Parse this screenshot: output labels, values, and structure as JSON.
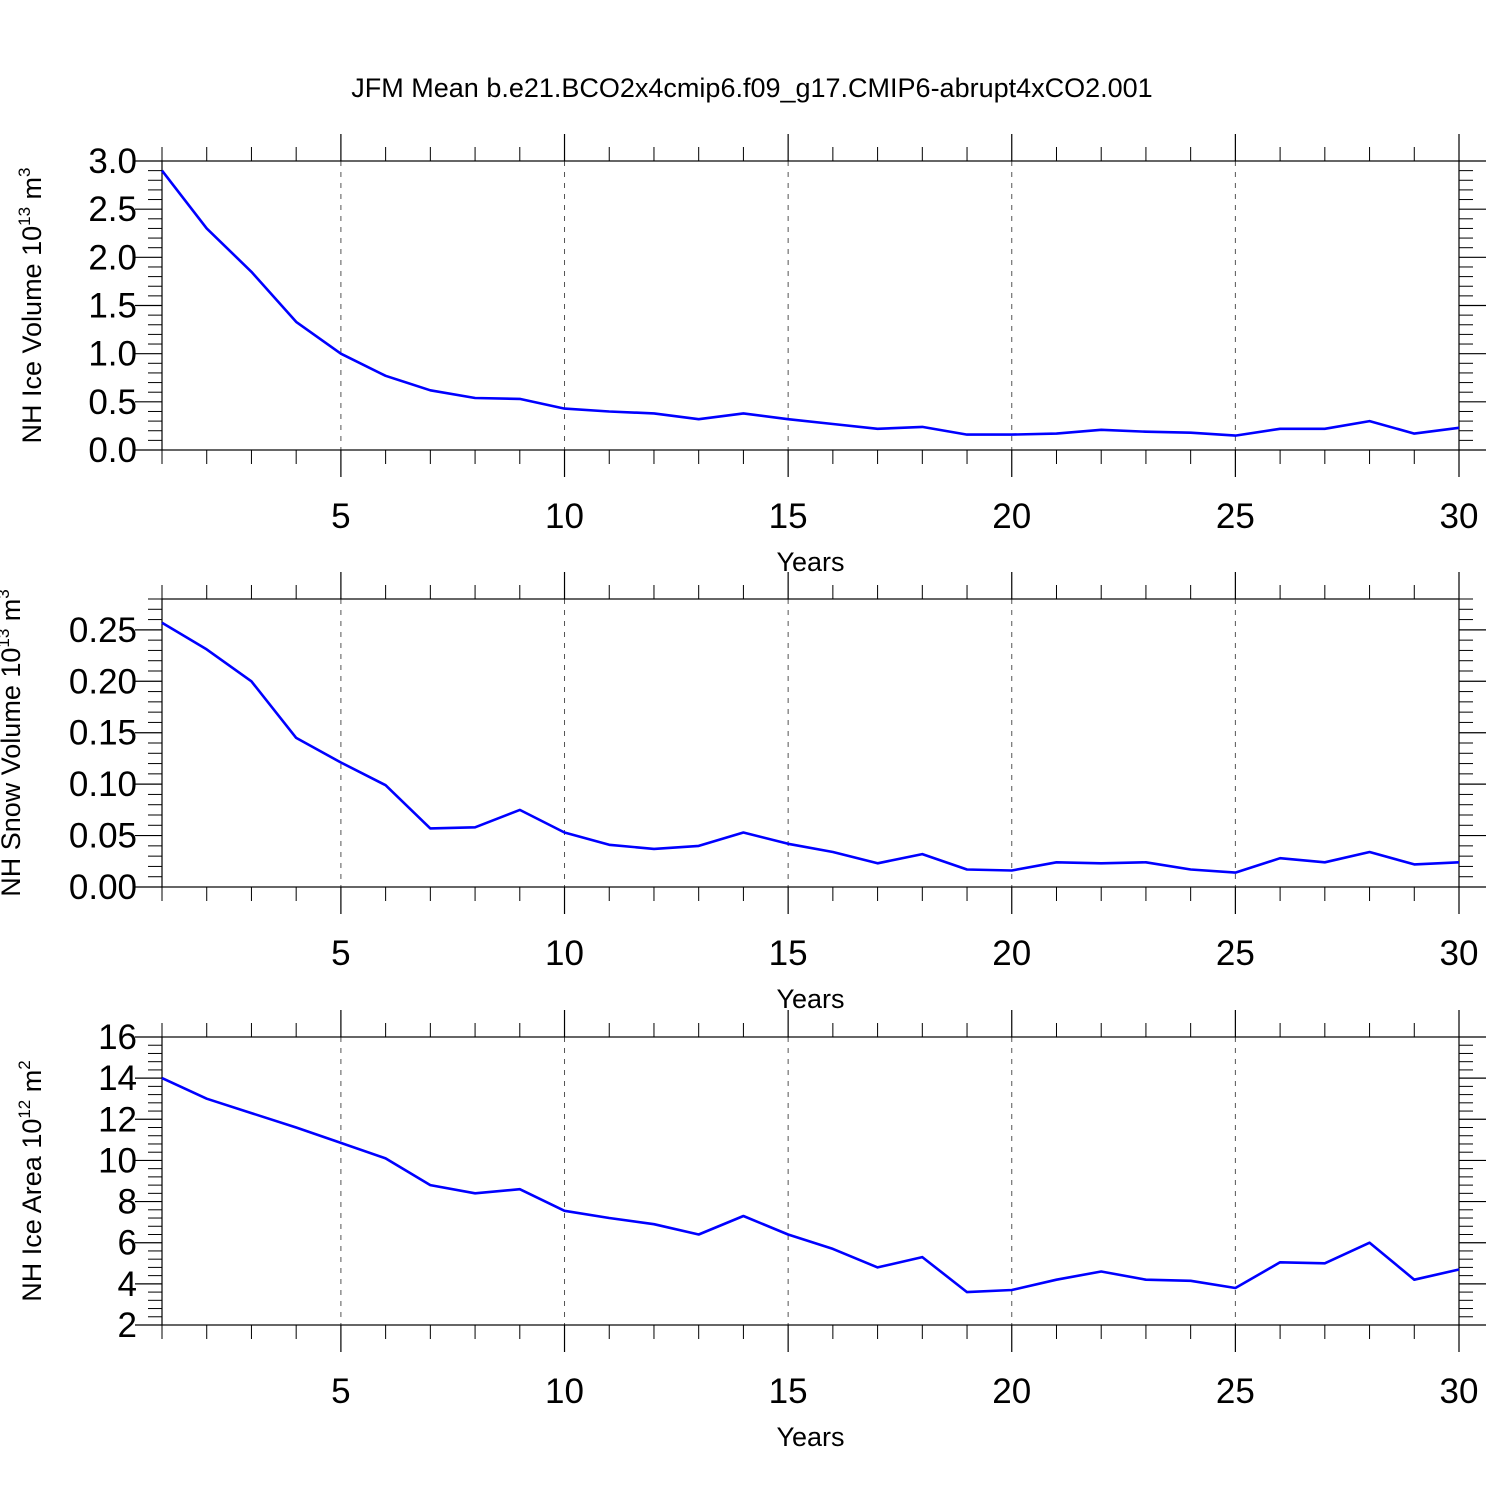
{
  "title": "JFM Mean b.e21.BCO2x4cmip6.f09_g17.CMIP6-abrupt4xCO2.001",
  "chart_data": [
    {
      "type": "line",
      "ylabel": "NH Ice Volume 10",
      "ylabel_exp": "13",
      "ylabel_unit": "m",
      "ylabel_unit_exp": "3",
      "xlabel": "Years",
      "xlim": [
        1,
        30
      ],
      "ylim": [
        0,
        3.0
      ],
      "yticks": [
        0,
        0.5,
        1.0,
        1.5,
        2.0,
        2.5,
        3.0
      ],
      "ytick_labels": [
        "0.0",
        "0.5",
        "1.0",
        "1.5",
        "2.0",
        "2.5",
        "3.0"
      ],
      "xticks": [
        5,
        10,
        15,
        20,
        25,
        30
      ],
      "xtick_labels": [
        "5",
        "10",
        "15",
        "20",
        "25",
        "30"
      ],
      "grid": "vertical dashed",
      "line_color": "#0000ff",
      "x": [
        1,
        2,
        3,
        4,
        5,
        6,
        7,
        8,
        9,
        10,
        11,
        12,
        13,
        14,
        15,
        16,
        17,
        18,
        19,
        20,
        21,
        22,
        23,
        24,
        25,
        26,
        27,
        28,
        29,
        30
      ],
      "y": [
        2.9,
        2.3,
        1.85,
        1.33,
        1.0,
        0.77,
        0.62,
        0.54,
        0.53,
        0.43,
        0.4,
        0.38,
        0.32,
        0.38,
        0.32,
        0.27,
        0.22,
        0.24,
        0.16,
        0.16,
        0.17,
        0.21,
        0.19,
        0.18,
        0.15,
        0.22,
        0.22,
        0.3,
        0.17,
        0.23
      ]
    },
    {
      "type": "line",
      "ylabel": "NH Snow Volume 10",
      "ylabel_exp": "13",
      "ylabel_unit": "m",
      "ylabel_unit_exp": "3",
      "xlabel": "Years",
      "xlim": [
        1,
        30
      ],
      "ylim": [
        0,
        0.28
      ],
      "yticks": [
        0,
        0.05,
        0.1,
        0.15,
        0.2,
        0.25
      ],
      "ytick_labels": [
        "0.00",
        "0.05",
        "0.10",
        "0.15",
        "0.20",
        "0.25"
      ],
      "xticks": [
        5,
        10,
        15,
        20,
        25,
        30
      ],
      "xtick_labels": [
        "5",
        "10",
        "15",
        "20",
        "25",
        "30"
      ],
      "grid": "vertical dashed",
      "line_color": "#0000ff",
      "x": [
        1,
        2,
        3,
        4,
        5,
        6,
        7,
        8,
        9,
        10,
        11,
        12,
        13,
        14,
        15,
        16,
        17,
        18,
        19,
        20,
        21,
        22,
        23,
        24,
        25,
        26,
        27,
        28,
        29,
        30
      ],
      "y": [
        0.257,
        0.231,
        0.2,
        0.145,
        0.121,
        0.099,
        0.057,
        0.058,
        0.075,
        0.053,
        0.041,
        0.037,
        0.04,
        0.053,
        0.042,
        0.034,
        0.023,
        0.032,
        0.017,
        0.016,
        0.024,
        0.023,
        0.024,
        0.017,
        0.014,
        0.028,
        0.024,
        0.034,
        0.022,
        0.024
      ]
    },
    {
      "type": "line",
      "ylabel": "NH Ice Area 10",
      "ylabel_exp": "12",
      "ylabel_unit": "m",
      "ylabel_unit_exp": "2",
      "xlabel": "Years",
      "xlim": [
        1,
        30
      ],
      "ylim": [
        2,
        16
      ],
      "yticks": [
        2,
        4,
        6,
        8,
        10,
        12,
        14,
        16
      ],
      "ytick_labels": [
        "2",
        "4",
        "6",
        "8",
        "10",
        "12",
        "14",
        "16"
      ],
      "xticks": [
        5,
        10,
        15,
        20,
        25,
        30
      ],
      "xtick_labels": [
        "5",
        "10",
        "15",
        "20",
        "25",
        "30"
      ],
      "grid": "vertical dashed",
      "line_color": "#0000ff",
      "x": [
        1,
        2,
        3,
        4,
        5,
        6,
        7,
        8,
        9,
        10,
        11,
        12,
        13,
        14,
        15,
        16,
        17,
        18,
        19,
        20,
        21,
        22,
        23,
        24,
        25,
        26,
        27,
        28,
        29,
        30
      ],
      "y": [
        14.0,
        13.0,
        12.3,
        11.6,
        10.85,
        10.1,
        8.8,
        8.4,
        8.6,
        7.55,
        7.2,
        6.9,
        6.4,
        7.3,
        6.4,
        5.7,
        4.8,
        5.3,
        3.6,
        3.7,
        4.2,
        4.6,
        4.2,
        4.15,
        3.8,
        5.05,
        5.0,
        6.0,
        4.2,
        4.7
      ]
    }
  ]
}
